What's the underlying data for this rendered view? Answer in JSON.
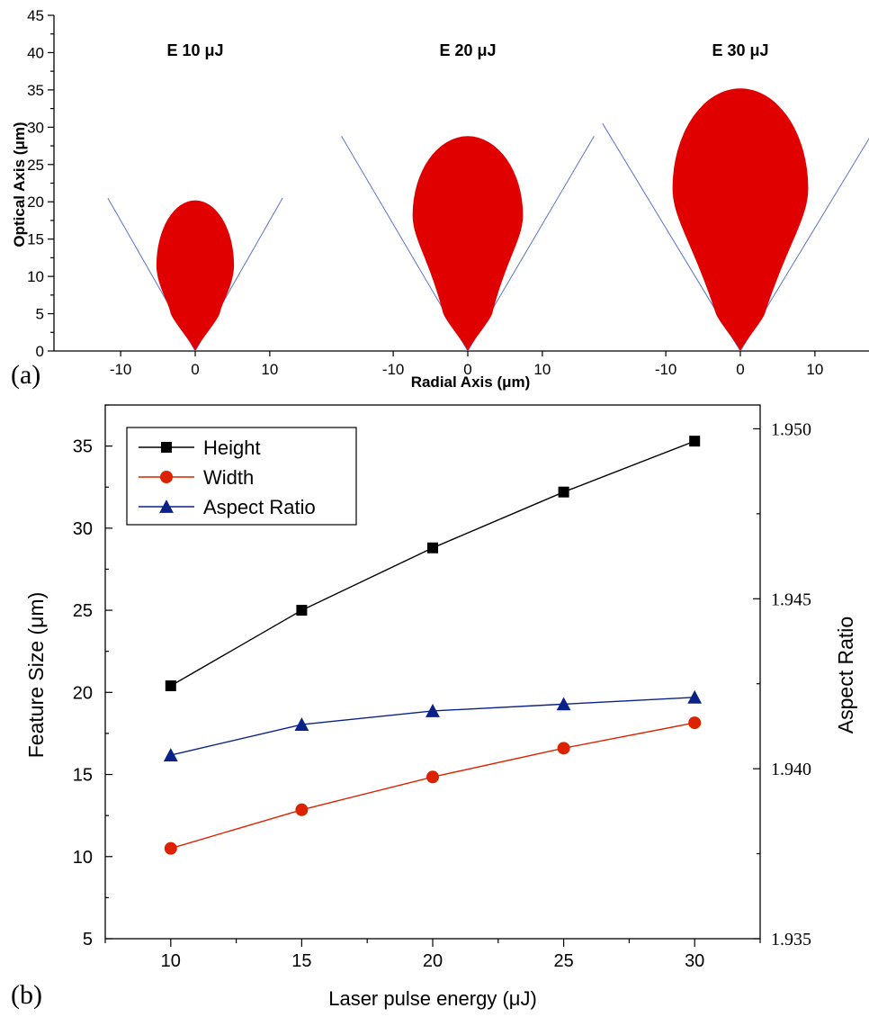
{
  "colors": {
    "droplet_fill": "#e00000",
    "cone_line": "#5a72c8",
    "height": "#000000",
    "width": "#dd2200",
    "aspect_ratio": "#0a2288",
    "axis": "#000000"
  },
  "chart_data": [
    {
      "id": "a",
      "type": "area",
      "panel_label": "(a)",
      "xlabel": "Radial Axis (μm)",
      "ylabel": "Optical Axis (μm)",
      "ylim": [
        0,
        45
      ],
      "y_ticks": [
        0,
        5,
        10,
        15,
        20,
        25,
        30,
        35,
        40,
        45
      ],
      "x_ticks": [
        -10,
        0,
        10
      ],
      "panels": [
        {
          "title": "E 10 μJ",
          "energy_uJ": 10,
          "height": 20.2,
          "half_width": 5.2,
          "bulb_center": 11.5,
          "neck_half_width_at_5": 2.8,
          "cone_slope": 1.75,
          "cone_top": 20.5
        },
        {
          "title": "E 20 μJ",
          "energy_uJ": 20,
          "height": 28.8,
          "half_width": 7.4,
          "bulb_center": 18.2,
          "neck_half_width_at_5": 2.8,
          "cone_slope": 1.7,
          "cone_top": 28.8
        },
        {
          "title": "E 30 μJ",
          "energy_uJ": 30,
          "height": 35.2,
          "half_width": 9.1,
          "bulb_center": 21.8,
          "neck_half_width_at_5": 2.8,
          "cone_slope": 1.65,
          "cone_top": 30.5
        }
      ]
    },
    {
      "id": "b",
      "type": "line",
      "panel_label": "(b)",
      "xlabel": "Laser pulse energy (μJ)",
      "ylabel": "Feature Size (μm)",
      "y2label": "Aspect Ratio",
      "x": [
        10,
        15,
        20,
        25,
        30
      ],
      "xlim": [
        7.5,
        32.5
      ],
      "x_ticks": [
        10,
        15,
        20,
        25,
        30
      ],
      "ylim": [
        5,
        37.5
      ],
      "y_ticks": [
        5,
        10,
        15,
        20,
        25,
        30,
        35
      ],
      "y2lim": [
        1.935,
        1.9507
      ],
      "y2_ticks": [
        "1.935",
        "1.940",
        "1.945",
        "1.950"
      ],
      "legend_position": "top-left",
      "series": [
        {
          "name": "Height",
          "axis": "left",
          "marker": "square",
          "values": [
            20.4,
            25.0,
            28.8,
            32.2,
            35.3
          ]
        },
        {
          "name": "Width",
          "axis": "left",
          "marker": "circle",
          "values": [
            10.5,
            12.85,
            14.85,
            16.6,
            18.15
          ]
        },
        {
          "name": "Aspect Ratio",
          "axis": "right",
          "marker": "triangle",
          "values": [
            1.9404,
            1.9413,
            1.9417,
            1.9419,
            1.9421
          ]
        }
      ]
    }
  ]
}
